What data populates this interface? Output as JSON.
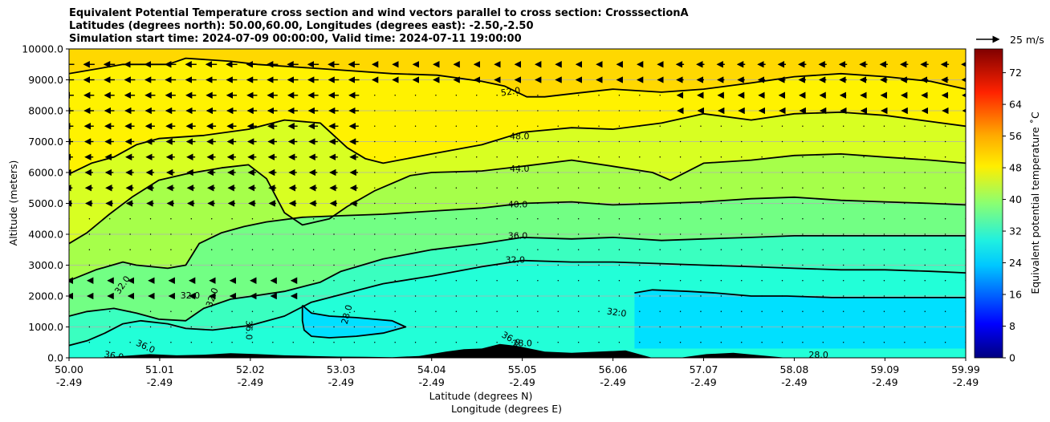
{
  "title_lines": [
    "Equivalent Potential Temperature cross section and wind vectors parallel to cross section: CrosssectionA",
    "Latitudes (degrees north): 50.00,60.00, Longitudes (degrees east): -2.50,-2.50",
    "Simulation start time: 2024-07-09 00:00:00, Valid time: 2024-07-11 19:00:00"
  ],
  "chart_data": {
    "type": "heatmap",
    "subtype": "filled contour with line contours and wind vectors",
    "title": "Equivalent Potential Temperature cross section and wind vectors parallel to cross section: CrosssectionA",
    "xlabel_1": "Latitude (degrees N)",
    "xlabel_2": "Longitude (degrees E)",
    "ylabel": "Altitude (meters)",
    "x_ticks_lat": [
      "50.00",
      "51.01",
      "52.02",
      "53.03",
      "54.04",
      "55.05",
      "56.06",
      "57.07",
      "58.08",
      "59.09",
      "59.99"
    ],
    "x_ticks_lon": [
      "-2.49",
      "-2.49",
      "-2.49",
      "-2.49",
      "-2.49",
      "-2.49",
      "-2.49",
      "-2.49",
      "-2.49",
      "-2.49",
      "-2.49"
    ],
    "x_tick_values": [
      50.0,
      51.01,
      52.02,
      53.03,
      54.04,
      55.05,
      56.06,
      57.07,
      58.08,
      59.09,
      59.99
    ],
    "xlim": [
      50.0,
      59.99
    ],
    "y_ticks": [
      "0.0",
      "1000.0",
      "2000.0",
      "3000.0",
      "4000.0",
      "5000.0",
      "6000.0",
      "7000.0",
      "8000.0",
      "9000.0",
      "10000.0"
    ],
    "ylim": [
      0,
      10000
    ],
    "grid": "horizontal",
    "colorbar": {
      "label": "Equivalent potential temperature ˚C",
      "ticks": [
        "0",
        "8",
        "16",
        "24",
        "32",
        "40",
        "48",
        "56",
        "64",
        "72"
      ],
      "range": [
        0,
        78
      ],
      "colormap": "jet"
    },
    "quiver_key": "25 m/s",
    "contour_labels": [
      "52.0",
      "48.0",
      "44.0",
      "40.0",
      "36.0",
      "32.0",
      "32.0",
      "32.0",
      "32.0",
      "32.0",
      "28.0",
      "36.0",
      "36.0",
      "36.0",
      "36.0",
      "28.0",
      "28.0"
    ],
    "contour_levels": [
      {
        "value": 52.0,
        "pts": [
          [
            50.0,
            9200
          ],
          [
            50.6,
            9500
          ],
          [
            51.1,
            9500
          ],
          [
            51.3,
            9700
          ],
          [
            51.8,
            9600
          ],
          [
            52.1,
            9500
          ],
          [
            52.6,
            9400
          ],
          [
            53.1,
            9300
          ],
          [
            53.6,
            9200
          ],
          [
            54.1,
            9150
          ],
          [
            54.6,
            8950
          ],
          [
            54.85,
            8800
          ],
          [
            55.1,
            8450
          ],
          [
            55.3,
            8450
          ],
          [
            55.6,
            8550
          ],
          [
            56.06,
            8700
          ],
          [
            56.6,
            8600
          ],
          [
            57.07,
            8700
          ],
          [
            57.6,
            8900
          ],
          [
            58.08,
            9100
          ],
          [
            58.6,
            9200
          ],
          [
            59.1,
            9100
          ],
          [
            59.6,
            8950
          ],
          [
            59.99,
            8700
          ]
        ]
      },
      {
        "value": 48.0,
        "pts": [
          [
            50.0,
            5950
          ],
          [
            50.25,
            6300
          ],
          [
            50.5,
            6500
          ],
          [
            50.75,
            6900
          ],
          [
            51.0,
            7100
          ],
          [
            51.5,
            7200
          ],
          [
            52.0,
            7400
          ],
          [
            52.4,
            7700
          ],
          [
            52.8,
            7600
          ],
          [
            53.1,
            6800
          ],
          [
            53.3,
            6450
          ],
          [
            53.5,
            6300
          ],
          [
            54.04,
            6600
          ],
          [
            54.6,
            6900
          ],
          [
            55.05,
            7300
          ],
          [
            55.6,
            7450
          ],
          [
            56.06,
            7400
          ],
          [
            56.6,
            7600
          ],
          [
            57.07,
            7900
          ],
          [
            57.6,
            7700
          ],
          [
            58.08,
            7900
          ],
          [
            58.6,
            7950
          ],
          [
            59.09,
            7850
          ],
          [
            59.6,
            7650
          ],
          [
            59.99,
            7500
          ]
        ]
      },
      {
        "value": 44.0,
        "pts": [
          [
            50.0,
            3700
          ],
          [
            50.2,
            4050
          ],
          [
            50.45,
            4650
          ],
          [
            50.7,
            5200
          ],
          [
            51.0,
            5750
          ],
          [
            51.3,
            5950
          ],
          [
            51.7,
            6150
          ],
          [
            52.0,
            6250
          ],
          [
            52.2,
            5800
          ],
          [
            52.4,
            4700
          ],
          [
            52.6,
            4300
          ],
          [
            52.9,
            4500
          ],
          [
            53.1,
            4900
          ],
          [
            53.4,
            5400
          ],
          [
            53.8,
            5900
          ],
          [
            54.04,
            6000
          ],
          [
            54.6,
            6050
          ],
          [
            55.05,
            6200
          ],
          [
            55.6,
            6400
          ],
          [
            56.06,
            6200
          ],
          [
            56.5,
            6000
          ],
          [
            56.7,
            5750
          ],
          [
            57.07,
            6300
          ],
          [
            57.6,
            6400
          ],
          [
            58.08,
            6550
          ],
          [
            58.6,
            6600
          ],
          [
            59.09,
            6500
          ],
          [
            59.6,
            6400
          ],
          [
            59.99,
            6300
          ]
        ]
      },
      {
        "value": 40.0,
        "pts": [
          [
            50.0,
            2500
          ],
          [
            50.3,
            2850
          ],
          [
            50.6,
            3100
          ],
          [
            50.75,
            3000
          ],
          [
            51.1,
            2900
          ],
          [
            51.3,
            3000
          ],
          [
            51.45,
            3700
          ],
          [
            51.7,
            4050
          ],
          [
            51.95,
            4250
          ],
          [
            52.2,
            4400
          ],
          [
            52.6,
            4550
          ],
          [
            53.03,
            4600
          ],
          [
            53.5,
            4650
          ],
          [
            54.04,
            4750
          ],
          [
            54.6,
            4850
          ],
          [
            55.05,
            5000
          ],
          [
            55.6,
            5050
          ],
          [
            56.06,
            4950
          ],
          [
            56.6,
            5000
          ],
          [
            57.07,
            5050
          ],
          [
            57.6,
            5150
          ],
          [
            58.08,
            5200
          ],
          [
            58.6,
            5100
          ],
          [
            59.09,
            5050
          ],
          [
            59.6,
            5000
          ],
          [
            59.99,
            4950
          ]
        ]
      },
      {
        "value": 36.0,
        "pts": [
          [
            50.0,
            1350
          ],
          [
            50.2,
            1500
          ],
          [
            50.5,
            1600
          ],
          [
            50.75,
            1450
          ],
          [
            51.0,
            1250
          ],
          [
            51.3,
            1200
          ],
          [
            51.5,
            1600
          ],
          [
            51.8,
            1900
          ],
          [
            52.05,
            2000
          ],
          [
            52.4,
            2150
          ],
          [
            52.8,
            2450
          ],
          [
            53.03,
            2800
          ],
          [
            53.5,
            3200
          ],
          [
            54.04,
            3500
          ],
          [
            54.6,
            3700
          ],
          [
            55.05,
            3900
          ],
          [
            55.6,
            3850
          ],
          [
            56.06,
            3900
          ],
          [
            56.6,
            3800
          ],
          [
            57.07,
            3850
          ],
          [
            57.6,
            3900
          ],
          [
            58.08,
            3950
          ],
          [
            58.6,
            3950
          ],
          [
            59.09,
            3950
          ],
          [
            59.6,
            3950
          ],
          [
            59.99,
            3950
          ]
        ]
      },
      {
        "value": 32.0,
        "pts": [
          [
            50.0,
            400
          ],
          [
            50.2,
            550
          ],
          [
            50.4,
            800
          ],
          [
            50.6,
            1100
          ],
          [
            50.8,
            1200
          ],
          [
            51.1,
            1100
          ],
          [
            51.3,
            950
          ],
          [
            51.6,
            900
          ],
          [
            52.02,
            1050
          ],
          [
            52.4,
            1350
          ],
          [
            52.7,
            1800
          ],
          [
            53.03,
            2050
          ],
          [
            53.5,
            2400
          ],
          [
            54.04,
            2650
          ],
          [
            54.6,
            2950
          ],
          [
            55.05,
            3150
          ],
          [
            55.6,
            3100
          ],
          [
            56.06,
            3100
          ],
          [
            56.6,
            3050
          ],
          [
            57.07,
            3000
          ],
          [
            57.6,
            2950
          ],
          [
            58.08,
            2900
          ],
          [
            58.6,
            2850
          ],
          [
            59.09,
            2850
          ],
          [
            59.6,
            2800
          ],
          [
            59.99,
            2750
          ]
        ]
      },
      {
        "value": 28.0,
        "pts": [
          [
            52.6,
            1700
          ],
          [
            52.7,
            1450
          ],
          [
            52.9,
            1350
          ],
          [
            53.2,
            1300
          ],
          [
            53.4,
            1250
          ],
          [
            53.6,
            1200
          ],
          [
            53.75,
            1000
          ],
          [
            53.5,
            800
          ],
          [
            53.2,
            700
          ],
          [
            52.9,
            650
          ],
          [
            52.7,
            700
          ],
          [
            52.62,
            900
          ],
          [
            52.6,
            1200
          ],
          [
            52.6,
            1700
          ]
        ]
      },
      {
        "value": 28.0,
        "pts": [
          [
            56.3,
            2100
          ],
          [
            56.5,
            2200
          ],
          [
            56.9,
            2150
          ],
          [
            57.2,
            2100
          ],
          [
            57.6,
            2000
          ],
          [
            58.0,
            2000
          ],
          [
            58.5,
            1950
          ],
          [
            59.0,
            1950
          ],
          [
            59.5,
            1950
          ],
          [
            59.99,
            1950
          ]
        ]
      }
    ],
    "terrain_lat": [
      50.0,
      50.3,
      50.6,
      50.9,
      51.2,
      51.5,
      51.8,
      52.1,
      52.4,
      52.7,
      53.0,
      53.3,
      53.6,
      53.9,
      54.2,
      54.4,
      54.6,
      54.8,
      55.0,
      55.3,
      55.6,
      55.9,
      56.2,
      56.5,
      56.8,
      57.1,
      57.4,
      57.7,
      58.0,
      58.3,
      59.99
    ],
    "terrain_alt": [
      0,
      0,
      60,
      120,
      80,
      100,
      150,
      120,
      80,
      60,
      40,
      30,
      20,
      60,
      200,
      280,
      300,
      450,
      380,
      200,
      160,
      200,
      240,
      0,
      0,
      120,
      160,
      80,
      0,
      0,
      0
    ]
  }
}
